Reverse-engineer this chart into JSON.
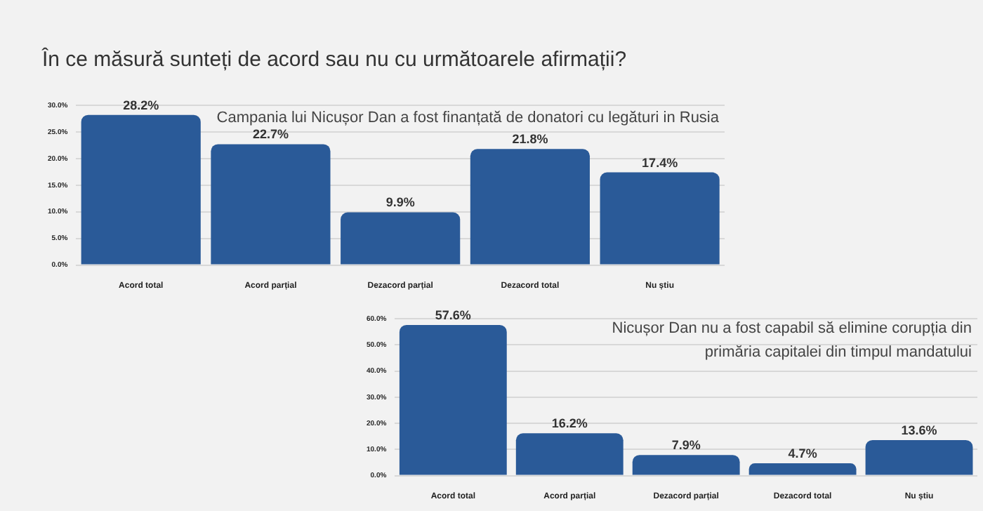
{
  "chart_data": [
    {
      "type": "bar",
      "title": "În ce măsură sunteți de acord sau nu cu următoarele afirmații?",
      "subtitle": "Campania lui Nicușor Dan a fost finanțată de donatori cu legături in Rusia",
      "categories": [
        "Acord total",
        "Acord parțial",
        "Dezacord parțial",
        "Dezacord total",
        "Nu știu"
      ],
      "values": [
        28.2,
        22.7,
        9.9,
        21.8,
        17.4
      ],
      "value_labels": [
        "28.2%",
        "22.7%",
        "9.9%",
        "21.8%",
        "17.4%"
      ],
      "color": "#2a5a98",
      "ylim": [
        0,
        30
      ],
      "yticks": [
        {
          "value": 0,
          "label": "0.0%"
        },
        {
          "value": 5,
          "label": "5.0%"
        },
        {
          "value": 10,
          "label": "10.0%"
        },
        {
          "value": 15,
          "label": "15.0%"
        },
        {
          "value": 20,
          "label": "20.0%"
        },
        {
          "value": 25,
          "label": "25.0%"
        },
        {
          "value": 30,
          "label": "30.0%"
        }
      ],
      "grid": "y"
    },
    {
      "type": "bar",
      "subtitle": "Nicușor Dan nu a fost capabil să elimine corupția din primăria capitalei din timpul mandatului",
      "categories": [
        "Acord total",
        "Acord parțial",
        "Dezacord parțial",
        "Dezacord total",
        "Nu știu"
      ],
      "values": [
        57.6,
        16.2,
        7.9,
        4.7,
        13.6
      ],
      "value_labels": [
        "57.6%",
        "16.2%",
        "7.9%",
        "4.7%",
        "13.6%"
      ],
      "color": "#2a5a98",
      "ylim": [
        0,
        60
      ],
      "yticks": [
        {
          "value": 0,
          "label": "0.0%"
        },
        {
          "value": 10,
          "label": "10.0%"
        },
        {
          "value": 20,
          "label": "20.0%"
        },
        {
          "value": 30,
          "label": "30.0%"
        },
        {
          "value": 40,
          "label": "40.0%"
        },
        {
          "value": 50,
          "label": "50.0%"
        },
        {
          "value": 60,
          "label": "60.0%"
        }
      ],
      "grid": "y"
    }
  ]
}
